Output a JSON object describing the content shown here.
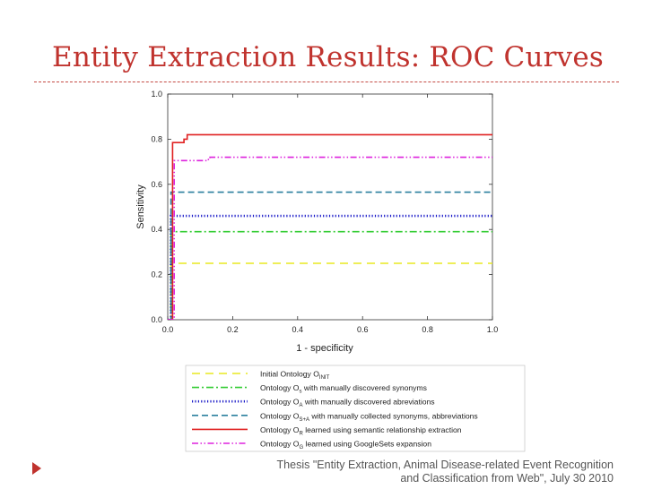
{
  "slide": {
    "title": "Entity Extraction Results: ROC Curves",
    "footer_line1": "Thesis \"Entity Extraction, Animal Disease-related Event Recognition",
    "footer_line2": "and Classification from Web\", July 30 2010",
    "accent_color": "#c0332e"
  },
  "chart_data": {
    "type": "line",
    "title": "",
    "xlabel": "1 - specificity",
    "ylabel": "Sensitivity",
    "xlim": [
      0,
      1
    ],
    "ylim": [
      0,
      1
    ],
    "xticks": [
      "0.0",
      "0.2",
      "0.4",
      "0.6",
      "0.8",
      "1.0"
    ],
    "yticks": [
      "0.0",
      "0.2",
      "0.4",
      "0.6",
      "0.8",
      "1.0"
    ],
    "grid": false,
    "legend_position": "bottom",
    "series": [
      {
        "key": "initial",
        "name_main": "Initial Ontology O",
        "name_sub": "INIT",
        "name_rest": "",
        "color": "#e8e820",
        "dash": "long-dash",
        "x": [
          0,
          0.01,
          0.01,
          1.0
        ],
        "y": [
          0,
          0,
          0.25,
          0.25
        ]
      },
      {
        "key": "synonyms",
        "name_main": "Ontology O",
        "name_sub": "s",
        "name_rest": " with manually discovered synonyms",
        "color": "#33cc33",
        "dash": "dash-dot",
        "x": [
          0,
          0.01,
          0.01,
          1.0
        ],
        "y": [
          0,
          0,
          0.39,
          0.39
        ]
      },
      {
        "key": "abbreviations",
        "name_main": "Ontology O",
        "name_sub": "A",
        "name_rest": " with manually discovered abreviations",
        "color": "#1a1ac8",
        "dash": "dotted",
        "x": [
          0,
          0.01,
          0.01,
          1.0
        ],
        "y": [
          0,
          0,
          0.46,
          0.46
        ]
      },
      {
        "key": "combined",
        "name_main": "Ontology O",
        "name_sub": "S+A",
        "name_rest": " with manually collected synonyms, abbreviations",
        "color": "#2a7f9e",
        "dash": "dashed",
        "x": [
          0,
          0.01,
          0.01,
          1.0
        ],
        "y": [
          0,
          0,
          0.565,
          0.565
        ]
      },
      {
        "key": "semantic",
        "name_main": "Ontology O",
        "name_sub": "R",
        "name_rest": " learned using semantic relationship extraction",
        "color": "#e02020",
        "dash": "solid",
        "x": [
          0,
          0.015,
          0.015,
          0.05,
          0.05,
          0.06,
          0.06,
          1.0
        ],
        "y": [
          0,
          0,
          0.785,
          0.785,
          0.8,
          0.8,
          0.82,
          0.82
        ]
      },
      {
        "key": "googlesets",
        "name_main": "Ontology O",
        "name_sub": "G",
        "name_rest": " learned using GoogleSets expansion",
        "color": "#dd22dd",
        "dash": "dash-dot-dot",
        "x": [
          0,
          0.02,
          0.02,
          0.12,
          0.12,
          0.13,
          0.13,
          1.0
        ],
        "y": [
          0,
          0,
          0.705,
          0.705,
          0.71,
          0.71,
          0.72,
          0.72
        ]
      }
    ]
  }
}
